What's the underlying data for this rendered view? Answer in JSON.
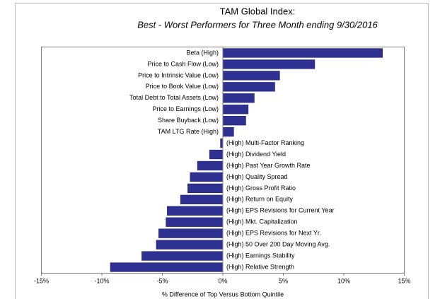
{
  "chart_data": {
    "type": "bar",
    "orientation": "horizontal",
    "title": "TAM Global Index:",
    "subtitle": "Best - Worst Performers for Three Month ending 9/30/2016",
    "x_label": "% Difference of Top Versus Bottom Quintile",
    "categories": [
      "Beta (High)",
      "Price to Cash Flow (Low)",
      "Price to Intrinsic Value (Low)",
      "Price to Book Value (Low)",
      "Total Debt to Total Assets (Low)",
      "Price to Earnings (Low)",
      "Share Buyback (Low)",
      "TAM LTG Rate (High)",
      "(High) Multi-Factor Ranking",
      "(High) Dividend Yield",
      "(High) Past Year Growth Rate",
      "(High) Quality Spread",
      "(High) Gross Profit Ratio",
      "(High) Return on Equity",
      "(High) EPS Revisions for Current Year",
      "(High) Mkt. Capitalization",
      "(High) EPS Revisions for Next Yr.",
      "(High) 50 Over 200 Day Moving Avg.",
      "(High) Earnings Stability",
      "(High) Relative Strength"
    ],
    "values": [
      13.2,
      7.6,
      4.7,
      4.3,
      2.6,
      2.1,
      1.9,
      0.9,
      -0.2,
      -1.1,
      -2.1,
      -2.7,
      -2.9,
      -3.5,
      -4.6,
      -4.7,
      -5.3,
      -5.5,
      -6.7,
      -9.3
    ],
    "color": "#2e3192",
    "xlim": [
      -15,
      15
    ],
    "xticks": [
      {
        "value": -15,
        "label": "-15%"
      },
      {
        "value": -10,
        "label": "-10%"
      },
      {
        "value": -5,
        "label": "-5%"
      },
      {
        "value": 0,
        "label": "0%"
      },
      {
        "value": 5,
        "label": "5%"
      },
      {
        "value": 10,
        "label": "10%"
      },
      {
        "value": 15,
        "label": "15%"
      }
    ]
  }
}
